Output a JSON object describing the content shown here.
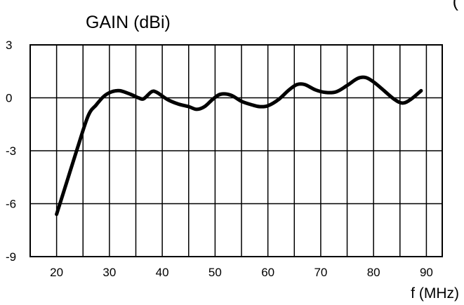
{
  "chart_data": {
    "type": "line",
    "title": "GAIN  (dBi)",
    "top_right_fragment": "(",
    "xlabel": "f (MHz)",
    "ylabel": "",
    "xlim": [
      15,
      93
    ],
    "ylim": [
      -9,
      3
    ],
    "x_ticks": [
      20,
      30,
      40,
      50,
      60,
      70,
      80,
      90
    ],
    "x_tick_labels": [
      "20",
      "30",
      "40",
      "50",
      "60",
      "70",
      "80",
      "90"
    ],
    "y_ticks": [
      3,
      0,
      -3,
      -6,
      -9
    ],
    "y_tick_labels": [
      "3",
      "0",
      "-3",
      "-6",
      "-9"
    ],
    "grid": true,
    "series": [
      {
        "x": [
          20,
          22,
          24,
          26,
          27.5,
          29,
          30.5,
          32,
          34,
          35.5,
          36.5,
          38,
          39,
          41,
          43,
          45,
          46.5,
          48,
          49.5,
          51,
          53,
          55,
          57,
          58.5,
          60,
          62,
          64,
          65.5,
          67,
          69,
          71,
          73,
          75,
          77,
          78.5,
          80,
          82,
          84,
          85.5,
          87,
          89
        ],
        "y": [
          -6.6,
          -4.7,
          -2.8,
          -1.0,
          -0.4,
          0.1,
          0.35,
          0.4,
          0.2,
          0.0,
          -0.05,
          0.35,
          0.3,
          -0.1,
          -0.35,
          -0.5,
          -0.65,
          -0.5,
          -0.1,
          0.2,
          0.15,
          -0.2,
          -0.4,
          -0.5,
          -0.45,
          -0.1,
          0.45,
          0.75,
          0.75,
          0.45,
          0.3,
          0.35,
          0.7,
          1.1,
          1.15,
          0.9,
          0.4,
          -0.1,
          -0.3,
          -0.1,
          0.4
        ]
      }
    ]
  }
}
